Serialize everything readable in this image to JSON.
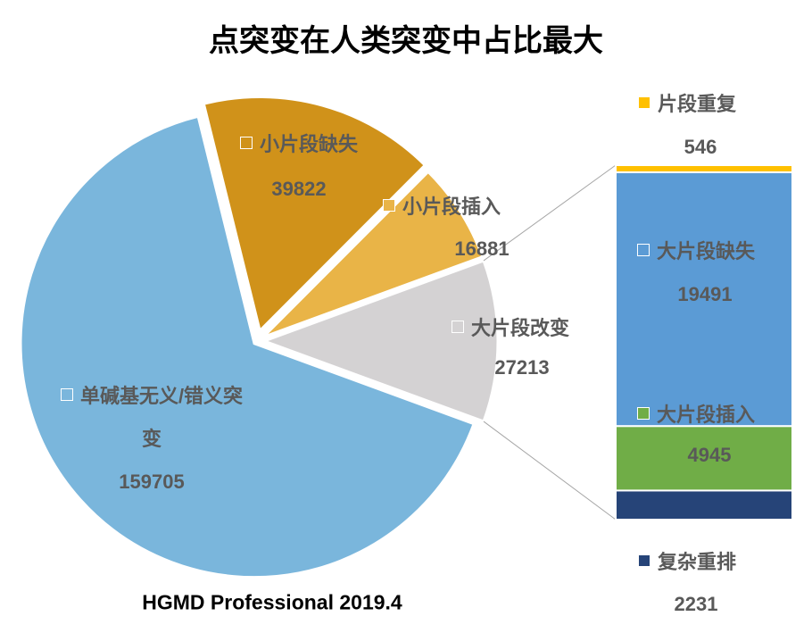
{
  "chart_data": {
    "type": "pie-of-bar",
    "title": "点突变在人类突变中占比最大",
    "source": "HGMD Professional 2019.4",
    "pie": {
      "categories": [
        "单碱基无义/错义突变",
        "小片段缺失",
        "小片段插入",
        "大片段改变"
      ],
      "values": [
        159705,
        39822,
        16881,
        27213
      ],
      "colors": [
        "#7ab6dc",
        "#d0921a",
        "#e9b447",
        "#d4d2d3"
      ]
    },
    "bar": {
      "categories": [
        "片段重复",
        "大片段缺失",
        "大片段插入",
        "复杂重排"
      ],
      "values": [
        546,
        19491,
        4945,
        2231
      ],
      "colors": [
        "#ffc000",
        "#5b9bd5",
        "#70ad47",
        "#264478"
      ]
    }
  }
}
